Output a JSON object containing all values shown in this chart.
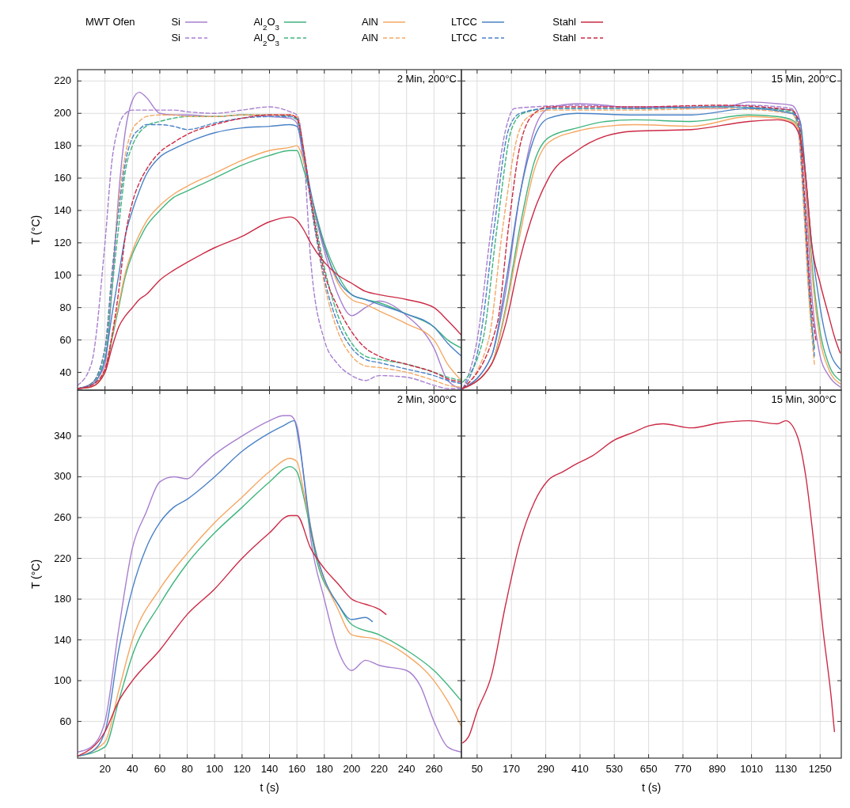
{
  "chart_data": [
    {
      "type": "line",
      "title": "2 Min, 200°C",
      "ylabel": "T  (°C)",
      "legend_title": "MWT Ofen",
      "legend": "top",
      "grid": true,
      "tick_labels": "y",
      "xlim": [
        0,
        280
      ],
      "xticks": [
        20,
        40,
        60,
        80,
        100,
        120,
        140,
        160,
        180,
        200,
        220,
        240,
        260
      ],
      "ylim": [
        29,
        227
      ],
      "yticks": [
        40,
        60,
        80,
        100,
        120,
        140,
        160,
        180,
        200,
        220
      ],
      "x": [
        0,
        10,
        20,
        25,
        30,
        35,
        40,
        45,
        50,
        60,
        70,
        80,
        100,
        120,
        140,
        155,
        160,
        165,
        170,
        180,
        190,
        200,
        210,
        220,
        240,
        260,
        270,
        280
      ],
      "series": [
        {
          "name": "Si",
          "color": "#a77fcf",
          "line_style": "solid",
          "values": [
            30,
            33,
            45,
            90,
            150,
            190,
            208,
            213,
            210,
            200,
            199,
            199,
            198,
            199,
            198,
            197,
            194,
            170,
            150,
            115,
            88,
            75,
            80,
            84,
            75,
            55,
            35,
            30
          ]
        },
        {
          "name": "Si",
          "color": "#a77fcf",
          "line_style": "dashed",
          "values": [
            32,
            45,
            120,
            170,
            192,
            200,
            202,
            202,
            202,
            202,
            202,
            201,
            200,
            202,
            204,
            201,
            199,
            175,
            110,
            60,
            45,
            38,
            35,
            38,
            37,
            32,
            30,
            30
          ]
        },
        {
          "name": "Al$_{2}$O$_{3}$",
          "color": "#3fb57e",
          "line_style": "solid",
          "values": [
            30,
            31,
            40,
            60,
            80,
            100,
            113,
            122,
            130,
            140,
            148,
            152,
            160,
            168,
            174,
            177,
            177,
            165,
            150,
            120,
            100,
            88,
            85,
            83,
            76,
            68,
            60,
            55
          ]
        },
        {
          "name": "Al$_{2}$O$_{3}$",
          "color": "#3fb57e",
          "line_style": "dashed",
          "values": [
            30,
            33,
            50,
            90,
            130,
            165,
            180,
            188,
            192,
            195,
            197,
            198,
            198,
            199,
            199,
            198,
            196,
            175,
            150,
            105,
            75,
            58,
            50,
            48,
            45,
            40,
            37,
            35
          ]
        },
        {
          "name": "AlN",
          "color": "#f5a863",
          "line_style": "solid",
          "values": [
            30,
            31,
            42,
            62,
            82,
            102,
            115,
            125,
            133,
            143,
            150,
            155,
            163,
            171,
            177,
            179,
            180,
            170,
            150,
            118,
            95,
            85,
            82,
            78,
            70,
            60,
            45,
            35
          ]
        },
        {
          "name": "AlN",
          "color": "#f5a863",
          "line_style": "dashed",
          "values": [
            30,
            33,
            55,
            100,
            145,
            175,
            190,
            195,
            198,
            199,
            199,
            198,
            198,
            199,
            199,
            199,
            198,
            178,
            148,
            95,
            65,
            50,
            44,
            43,
            40,
            35,
            32,
            31
          ]
        },
        {
          "name": "LTCC",
          "color": "#4a82c6",
          "line_style": "solid",
          "values": [
            30,
            32,
            48,
            75,
            100,
            125,
            140,
            152,
            162,
            173,
            178,
            182,
            188,
            191,
            192,
            193,
            192,
            175,
            152,
            118,
            97,
            88,
            85,
            82,
            76,
            68,
            58,
            50
          ]
        },
        {
          "name": "LTCC",
          "color": "#4a82c6",
          "line_style": "dashed",
          "values": [
            30,
            33,
            55,
            100,
            140,
            170,
            185,
            190,
            193,
            193,
            192,
            190,
            194,
            197,
            198,
            198,
            197,
            175,
            145,
            98,
            70,
            55,
            48,
            46,
            42,
            38,
            35,
            33
          ]
        },
        {
          "name": "Stahl",
          "color": "#cc2a45",
          "line_style": "solid",
          "values": [
            30,
            31,
            40,
            55,
            68,
            75,
            80,
            85,
            88,
            97,
            103,
            108,
            117,
            124,
            133,
            136,
            134,
            128,
            120,
            108,
            100,
            95,
            90,
            88,
            85,
            80,
            72,
            63
          ]
        },
        {
          "name": "Stahl",
          "color": "#cc2a45",
          "line_style": "dashed",
          "values": [
            30,
            32,
            42,
            62,
            90,
            125,
            145,
            157,
            165,
            176,
            182,
            187,
            193,
            197,
            199,
            199,
            197,
            177,
            148,
            102,
            80,
            65,
            55,
            50,
            45,
            40,
            36,
            34
          ]
        }
      ]
    },
    {
      "type": "line",
      "title": "15 Min, 200°C",
      "grid": true,
      "tick_labels": false,
      "xlim": [
        -5,
        1324
      ],
      "xticks": [
        50,
        170,
        290,
        410,
        530,
        650,
        770,
        890,
        1010,
        1130,
        1250
      ],
      "ylim": [
        29,
        227
      ],
      "yticks": [
        40,
        60,
        80,
        100,
        120,
        140,
        160,
        180,
        200,
        220
      ],
      "series": [
        {
          "color": "#a77fcf",
          "line_style": "solid",
          "x": [
            0,
            100,
            150,
            200,
            250,
            300,
            400,
            500,
            600,
            700,
            800,
            900,
            1000,
            1100,
            1150,
            1180,
            1200,
            1220,
            1250,
            1280,
            1320
          ],
          "values": [
            30,
            50,
            90,
            150,
            190,
            203,
            206,
            205,
            203,
            204,
            203,
            203,
            207,
            206,
            205,
            195,
            150,
            90,
            50,
            38,
            31
          ]
        },
        {
          "color": "#a77fcf",
          "line_style": "dashed",
          "x": [
            0,
            50,
            100,
            150,
            180,
            250,
            400,
            600,
            800,
            1000,
            1150,
            1170,
            1190,
            1210,
            1230
          ],
          "values": [
            30,
            60,
            130,
            190,
            203,
            204,
            205,
            204,
            204,
            205,
            203,
            195,
            150,
            90,
            55
          ]
        },
        {
          "color": "#3fb57e",
          "line_style": "solid",
          "x": [
            0,
            100,
            150,
            200,
            250,
            300,
            400,
            500,
            600,
            800,
            1000,
            1100,
            1150,
            1180,
            1200,
            1220,
            1250,
            1280,
            1320
          ],
          "values": [
            30,
            45,
            80,
            130,
            170,
            185,
            191,
            195,
            196,
            195,
            199,
            198,
            196,
            190,
            160,
            110,
            65,
            45,
            35
          ]
        },
        {
          "color": "#3fb57e",
          "line_style": "dashed",
          "x": [
            0,
            70,
            120,
            170,
            210,
            300,
            600,
            900,
            1150,
            1175,
            1195,
            1215,
            1230
          ],
          "values": [
            34,
            60,
            130,
            190,
            200,
            203,
            203,
            204,
            201,
            190,
            140,
            80,
            55
          ]
        },
        {
          "color": "#f5a863",
          "line_style": "solid",
          "x": [
            0,
            100,
            150,
            200,
            250,
            300,
            400,
            500,
            600,
            800,
            1000,
            1100,
            1150,
            1180,
            1200,
            1220,
            1250,
            1280,
            1320
          ],
          "values": [
            30,
            45,
            78,
            125,
            165,
            182,
            189,
            192,
            193,
            192,
            198,
            197,
            195,
            188,
            155,
            105,
            60,
            42,
            33
          ]
        },
        {
          "color": "#f5a863",
          "line_style": "dashed",
          "x": [
            0,
            90,
            140,
            190,
            230,
            300,
            600,
            900,
            1150,
            1175,
            1195,
            1215,
            1230
          ],
          "values": [
            30,
            60,
            130,
            185,
            198,
            202,
            202,
            203,
            200,
            188,
            135,
            75,
            45
          ]
        },
        {
          "color": "#4a82c6",
          "line_style": "solid",
          "x": [
            0,
            100,
            150,
            200,
            250,
            300,
            400,
            600,
            800,
            1000,
            1150,
            1180,
            1200,
            1220,
            1250,
            1280,
            1320
          ],
          "values": [
            30,
            50,
            95,
            150,
            185,
            197,
            200,
            199,
            199,
            203,
            200,
            195,
            160,
            120,
            80,
            55,
            42
          ]
        },
        {
          "color": "#4a82c6",
          "line_style": "dashed",
          "x": [
            0,
            60,
            110,
            160,
            200,
            300,
            600,
            900,
            1150,
            1175,
            1195,
            1215,
            1230
          ],
          "values": [
            30,
            60,
            130,
            190,
            200,
            203,
            203,
            204,
            202,
            192,
            145,
            85,
            50
          ]
        },
        {
          "color": "#cc2a45",
          "line_style": "solid",
          "x": [
            0,
            100,
            150,
            200,
            250,
            300,
            400,
            500,
            600,
            800,
            1000,
            1100,
            1150,
            1180,
            1200,
            1220,
            1250,
            1280,
            1300,
            1320
          ],
          "values": [
            30,
            45,
            70,
            110,
            140,
            160,
            177,
            186,
            189,
            190,
            195,
            196,
            194,
            185,
            160,
            120,
            95,
            75,
            62,
            52
          ]
        },
        {
          "color": "#cc2a45",
          "line_style": "dashed",
          "x": [
            0,
            120,
            160,
            200,
            250,
            300,
            600,
            900,
            1150,
            1175,
            1195,
            1215,
            1235
          ],
          "values": [
            30,
            70,
            130,
            180,
            200,
            204,
            204,
            205,
            202,
            195,
            150,
            90,
            60
          ]
        }
      ]
    },
    {
      "type": "line",
      "title": "2 Min, 300°C",
      "xlabel": "t (s)",
      "ylabel": "T  (°C)",
      "grid": true,
      "xlim": [
        0,
        280
      ],
      "xticks": [
        20,
        40,
        60,
        80,
        100,
        120,
        140,
        160,
        180,
        200,
        220,
        240,
        260
      ],
      "ylim": [
        24,
        385
      ],
      "yticks": [
        60,
        100,
        140,
        180,
        220,
        260,
        300,
        340
      ],
      "series": [
        {
          "color": "#a77fcf",
          "line_style": "solid",
          "x": [
            0,
            10,
            20,
            30,
            40,
            50,
            60,
            70,
            80,
            90,
            100,
            120,
            140,
            150,
            155,
            160,
            165,
            170,
            180,
            190,
            200,
            210,
            220,
            240,
            250,
            260,
            270,
            280
          ],
          "values": [
            30,
            35,
            60,
            150,
            230,
            265,
            295,
            300,
            298,
            310,
            322,
            340,
            355,
            360,
            360,
            350,
            300,
            240,
            180,
            130,
            110,
            120,
            115,
            110,
            95,
            60,
            35,
            30
          ]
        },
        {
          "color": "#3fb57e",
          "line_style": "solid",
          "x": [
            0,
            20,
            30,
            40,
            60,
            80,
            100,
            120,
            140,
            155,
            160,
            165,
            175,
            190,
            200,
            220,
            240,
            260,
            280
          ],
          "values": [
            26,
            35,
            80,
            125,
            175,
            215,
            245,
            270,
            295,
            310,
            305,
            280,
            215,
            175,
            155,
            145,
            130,
            110,
            80
          ]
        },
        {
          "color": "#f5a863",
          "line_style": "solid",
          "x": [
            0,
            20,
            30,
            40,
            60,
            80,
            100,
            120,
            140,
            155,
            160,
            165,
            175,
            190,
            200,
            220,
            240,
            260,
            270,
            280
          ],
          "values": [
            26,
            40,
            90,
            140,
            190,
            225,
            255,
            280,
            305,
            318,
            315,
            285,
            220,
            170,
            145,
            140,
            125,
            100,
            80,
            55
          ]
        },
        {
          "color": "#4a82c6",
          "line_style": "solid",
          "x": [
            0,
            10,
            20,
            30,
            40,
            50,
            60,
            70,
            80,
            100,
            120,
            140,
            150,
            158,
            162,
            170,
            180,
            190,
            200,
            210,
            215
          ],
          "values": [
            26,
            30,
            50,
            130,
            190,
            230,
            255,
            270,
            278,
            300,
            325,
            343,
            350,
            355,
            330,
            250,
            200,
            175,
            160,
            162,
            158
          ]
        },
        {
          "color": "#cc2a45",
          "line_style": "solid",
          "x": [
            0,
            20,
            30,
            40,
            60,
            80,
            100,
            120,
            140,
            155,
            160,
            170,
            180,
            190,
            200,
            210,
            220,
            225
          ],
          "values": [
            26,
            50,
            80,
            100,
            130,
            165,
            190,
            220,
            245,
            262,
            262,
            230,
            210,
            195,
            180,
            175,
            170,
            165
          ]
        }
      ]
    },
    {
      "type": "line",
      "title": "15 Min, 300°C",
      "xlabel": "t (s)",
      "grid": true,
      "tick_labels": "x",
      "xlim": [
        -5,
        1324
      ],
      "xticks": [
        50,
        170,
        290,
        410,
        530,
        650,
        770,
        890,
        1010,
        1130,
        1250
      ],
      "ylim": [
        24,
        385
      ],
      "yticks": [
        60,
        100,
        140,
        180,
        220,
        260,
        300,
        340
      ],
      "series": [
        {
          "color": "#cc2a45",
          "line_style": "solid",
          "x": [
            0,
            20,
            50,
            100,
            150,
            200,
            250,
            300,
            350,
            400,
            450,
            530,
            600,
            650,
            700,
            800,
            900,
            1000,
            1100,
            1130,
            1170,
            1200,
            1230,
            1260,
            1290,
            1300
          ],
          "values": [
            39,
            45,
            70,
            105,
            175,
            236,
            275,
            297,
            305,
            313,
            320,
            336,
            344,
            350,
            352,
            348,
            353,
            355,
            352,
            355,
            340,
            300,
            230,
            150,
            80,
            50
          ]
        }
      ]
    }
  ]
}
